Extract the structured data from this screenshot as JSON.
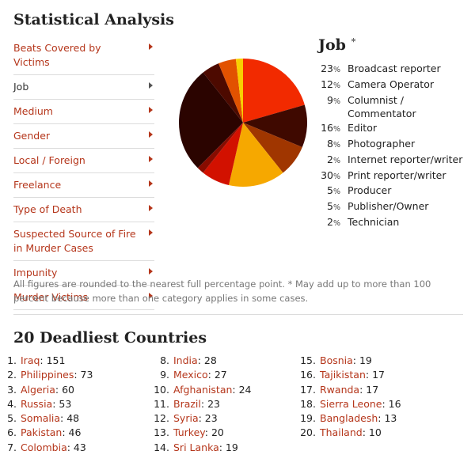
{
  "page": {
    "title": "Statistical Analysis"
  },
  "menu": {
    "items": [
      {
        "label": "Beats Covered by Victims",
        "active": false
      },
      {
        "label": "Job",
        "active": true
      },
      {
        "label": "Medium",
        "active": false
      },
      {
        "label": "Gender",
        "active": false
      },
      {
        "label": "Local / Foreign",
        "active": false
      },
      {
        "label": "Freelance",
        "active": false
      },
      {
        "label": "Type of Death",
        "active": false
      },
      {
        "label": "Suspected Source of Fire in Murder Cases",
        "active": false
      },
      {
        "label": "Impunity",
        "active": false
      },
      {
        "label": "Murder Victims",
        "active": false
      }
    ]
  },
  "chart_data": {
    "type": "pie",
    "title": "Job",
    "title_mark": "*",
    "percent_sign": "%",
    "legend_position": "right",
    "slices": [
      {
        "label": "Broadcast reporter",
        "value": 23,
        "color": "#f22a00"
      },
      {
        "label": "Camera Operator",
        "value": 12,
        "color": "#3f0900"
      },
      {
        "label": "Columnist / Commentator",
        "value": 9,
        "color": "#a03600"
      },
      {
        "label": "Editor",
        "value": 16,
        "color": "#f6a800"
      },
      {
        "label": "Photographer",
        "value": 8,
        "color": "#d21100"
      },
      {
        "label": "Internet reporter/writer",
        "value": 2,
        "color": "#870c00"
      },
      {
        "label": "Print reporter/writer",
        "value": 30,
        "color": "#2b0400"
      },
      {
        "label": "Producer",
        "value": 5,
        "color": "#4d0a00"
      },
      {
        "label": "Publisher/Owner",
        "value": 5,
        "color": "#e25200"
      },
      {
        "label": "Technician",
        "value": 2,
        "color": "#f8d000"
      }
    ]
  },
  "note": "All figures are rounded to the nearest full percentage point. * May add up to more than 100 percent because more than one category applies in some cases.",
  "countries": {
    "title": "20 Deadliest Countries",
    "columns": [
      [
        {
          "rank": "1.",
          "name": "Iraq",
          "count": "151"
        },
        {
          "rank": "2.",
          "name": "Philippines",
          "count": "73"
        },
        {
          "rank": "3.",
          "name": "Algeria",
          "count": "60"
        },
        {
          "rank": "4.",
          "name": "Russia",
          "count": "53"
        },
        {
          "rank": "5.",
          "name": "Somalia",
          "count": "48"
        },
        {
          "rank": "6.",
          "name": "Pakistan",
          "count": "46"
        },
        {
          "rank": "7.",
          "name": "Colombia",
          "count": "43"
        }
      ],
      [
        {
          "rank": "8.",
          "name": "India",
          "count": "28"
        },
        {
          "rank": "9.",
          "name": "Mexico",
          "count": "27"
        },
        {
          "rank": "10.",
          "name": "Afghanistan",
          "count": "24"
        },
        {
          "rank": "11.",
          "name": "Brazil",
          "count": "23"
        },
        {
          "rank": "12.",
          "name": "Syria",
          "count": "23"
        },
        {
          "rank": "13.",
          "name": "Turkey",
          "count": "20"
        },
        {
          "rank": "14.",
          "name": "Sri Lanka",
          "count": "19"
        }
      ],
      [
        {
          "rank": "15.",
          "name": "Bosnia",
          "count": "19"
        },
        {
          "rank": "16.",
          "name": "Tajikistan",
          "count": "17"
        },
        {
          "rank": "17.",
          "name": "Rwanda",
          "count": "17"
        },
        {
          "rank": "18.",
          "name": "Sierra Leone",
          "count": "16"
        },
        {
          "rank": "19.",
          "name": "Bangladesh",
          "count": "13"
        },
        {
          "rank": "20.",
          "name": "Thailand",
          "count": "10"
        }
      ]
    ]
  }
}
